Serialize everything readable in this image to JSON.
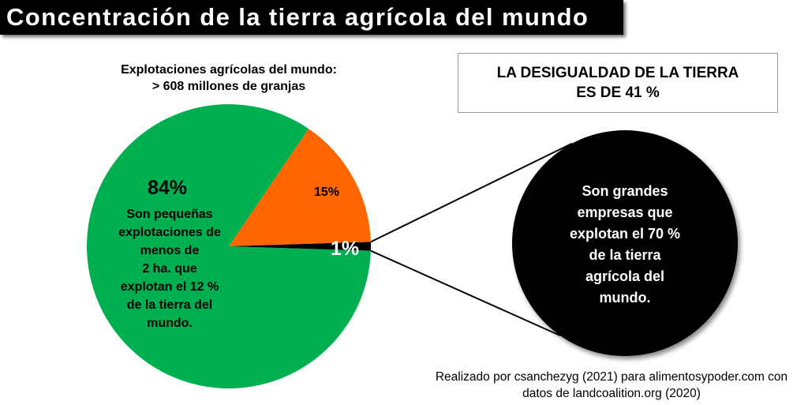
{
  "title": "Concentración de la tierra agrícola del mundo",
  "subtitle": {
    "line1": "Explotaciones agrícolas del mundo:",
    "line2": "> 608 millones de granjas"
  },
  "callout": {
    "line1": "LA DESIGUALDAD DE LA TIERRA",
    "line2": "ES DE 41 %"
  },
  "chart_data": {
    "type": "pie",
    "title": "Explotaciones agrícolas del mundo: > 608 millones de granjas",
    "slices": [
      {
        "label": "84%",
        "value": 84,
        "color": "#00b050",
        "description_lines": [
          "Son pequeñas",
          "explotaciones de",
          "menos de",
          "2 ha. que",
          "explotan el 12 %",
          "de la tierra del",
          "mundo."
        ]
      },
      {
        "label": "15%",
        "value": 15,
        "color": "#ff6600",
        "description_lines": []
      },
      {
        "label": "1%",
        "value": 1,
        "color": "#000000",
        "description_lines": [
          "Son grandes",
          "empresas que",
          "explotan el 70 %",
          "de la tierra",
          "agrícola del",
          "mundo."
        ]
      }
    ]
  },
  "credit": {
    "line1": "Realizado por csanchezyg (2021) para alimentosypoder.com con",
    "line2": "datos de landcoalition.org (2020)"
  }
}
